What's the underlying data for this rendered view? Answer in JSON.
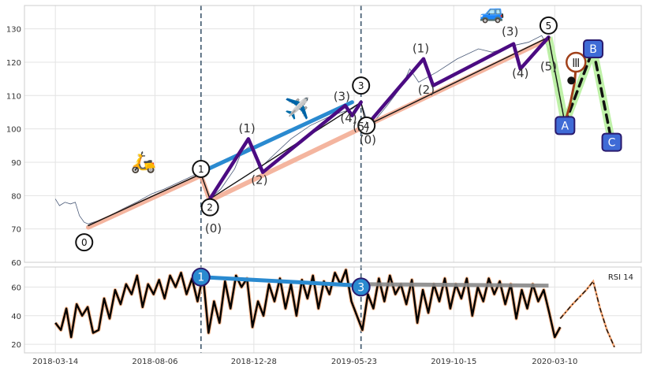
{
  "chart_data": [
    {
      "type": "line",
      "panel": "price",
      "ylim": [
        60,
        137
      ],
      "yticks": [
        60,
        70,
        80,
        90,
        100,
        110,
        120,
        130
      ],
      "grid": true,
      "vlines": [
        "2018-10-12",
        "2019-06-02"
      ],
      "price_series": [
        {
          "x": "2018-03-14",
          "y": 79
        },
        {
          "x": "2018-03-20",
          "y": 77
        },
        {
          "x": "2018-03-28",
          "y": 78
        },
        {
          "x": "2018-04-05",
          "y": 77.5
        },
        {
          "x": "2018-04-12",
          "y": 78
        },
        {
          "x": "2018-04-18",
          "y": 74
        },
        {
          "x": "2018-04-25",
          "y": 72
        },
        {
          "x": "2018-05-01",
          "y": 71.5
        },
        {
          "x": "2018-05-15",
          "y": 72.5
        },
        {
          "x": "2018-06-01",
          "y": 74
        },
        {
          "x": "2018-06-20",
          "y": 76
        },
        {
          "x": "2018-07-10",
          "y": 78
        },
        {
          "x": "2018-08-01",
          "y": 80.5
        },
        {
          "x": "2018-08-20",
          "y": 82
        },
        {
          "x": "2018-09-10",
          "y": 84
        },
        {
          "x": "2018-10-01",
          "y": 86
        },
        {
          "x": "2018-10-12",
          "y": 87
        },
        {
          "x": "2018-10-25",
          "y": 79
        },
        {
          "x": "2018-11-10",
          "y": 82
        },
        {
          "x": "2018-11-30",
          "y": 88
        },
        {
          "x": "2018-12-10",
          "y": 93
        },
        {
          "x": "2018-12-24",
          "y": 95
        },
        {
          "x": "2019-01-05",
          "y": 88
        },
        {
          "x": "2019-01-25",
          "y": 92
        },
        {
          "x": "2019-02-20",
          "y": 97
        },
        {
          "x": "2019-03-20",
          "y": 101
        },
        {
          "x": "2019-04-20",
          "y": 104
        },
        {
          "x": "2019-05-20",
          "y": 106
        },
        {
          "x": "2019-06-02",
          "y": 108
        },
        {
          "x": "2019-06-10",
          "y": 103
        },
        {
          "x": "2019-06-20",
          "y": 102
        },
        {
          "x": "2019-07-10",
          "y": 107
        },
        {
          "x": "2019-08-01",
          "y": 113
        },
        {
          "x": "2019-08-12",
          "y": 118
        },
        {
          "x": "2019-08-25",
          "y": 114
        },
        {
          "x": "2019-09-20",
          "y": 117
        },
        {
          "x": "2019-10-20",
          "y": 121
        },
        {
          "x": "2019-11-20",
          "y": 124
        },
        {
          "x": "2019-12-10",
          "y": 123
        },
        {
          "x": "2020-01-10",
          "y": 125
        },
        {
          "x": "2020-02-01",
          "y": 126
        },
        {
          "x": "2020-02-20",
          "y": 128
        },
        {
          "x": "2020-03-01",
          "y": 124
        },
        {
          "x": "2020-03-10",
          "y": 116
        },
        {
          "x": "2020-03-18",
          "y": 107
        },
        {
          "x": "2020-03-25",
          "y": 105
        }
      ],
      "segments": [
        {
          "kind": "salmon",
          "points": [
            [
              "2018-05-01",
              70.5
            ],
            [
              "2018-10-12",
              86
            ],
            [
              "2018-10-25",
              78.5
            ],
            [
              "2019-06-10",
              101
            ],
            [
              "2020-03-01",
              127
            ]
          ]
        },
        {
          "kind": "black",
          "points": [
            [
              "2018-05-01",
              71
            ],
            [
              "2018-10-12",
              86.5
            ],
            [
              "2018-10-25",
              79
            ],
            [
              "2019-06-02",
              108
            ],
            [
              "2019-06-10",
              101
            ],
            [
              "2020-03-01",
              127.5
            ]
          ]
        },
        {
          "kind": "blue",
          "points": [
            [
              "2018-10-12",
              87
            ],
            [
              "2019-05-20",
              108
            ]
          ]
        },
        {
          "kind": "purple",
          "points": [
            [
              "2018-10-25",
              79
            ],
            [
              "2018-12-20",
              97
            ],
            [
              "2019-01-10",
              87
            ],
            [
              "2019-05-10",
              107
            ],
            [
              "2019-05-20",
              104
            ],
            [
              "2019-06-02",
              108
            ]
          ]
        },
        {
          "kind": "purple",
          "points": [
            [
              "2019-06-10",
              101
            ],
            [
              "2019-09-01",
              121
            ],
            [
              "2019-09-15",
              113
            ],
            [
              "2020-01-10",
              125.5
            ],
            [
              "2020-01-20",
              118
            ],
            [
              "2020-03-01",
              127.5
            ]
          ]
        },
        {
          "kind": "black",
          "points": [
            [
              "2020-03-01",
              127.5
            ],
            [
              "2020-03-25",
              101.5
            ]
          ]
        },
        {
          "kind": "dashed",
          "points": [
            [
              "2020-03-25",
              101.5
            ],
            [
              "2020-05-05",
              124
            ],
            [
              "2020-06-01",
              96
            ]
          ]
        },
        {
          "kind": "brown",
          "points": [
            [
              "2020-03-25",
              102
            ],
            [
              "2020-04-01",
              107
            ],
            [
              "2020-04-08",
              114
            ],
            [
              "2020-04-10",
              119
            ]
          ]
        }
      ],
      "wave_labels": [
        {
          "text": "(0)",
          "x": "2018-10-30",
          "y": 69
        },
        {
          "text": "(1)",
          "x": "2018-12-18",
          "y": 99
        },
        {
          "text": "(2)",
          "x": "2019-01-05",
          "y": 83.5
        },
        {
          "text": "(3)",
          "x": "2019-05-05",
          "y": 108.5
        },
        {
          "text": "(4)",
          "x": "2019-05-15",
          "y": 102
        },
        {
          "text": "(5)",
          "x": "2019-06-02",
          "y": 99.5
        },
        {
          "text": "(0)",
          "x": "2019-06-12",
          "y": 95.5
        },
        {
          "text": "(1)",
          "x": "2019-08-28",
          "y": 123
        },
        {
          "text": "(2)",
          "x": "2019-09-05",
          "y": 110.5
        },
        {
          "text": "(3)",
          "x": "2020-01-05",
          "y": 128
        },
        {
          "text": "(4)",
          "x": "2020-01-20",
          "y": 115.5
        },
        {
          "text": "(5)",
          "x": "2020-03-01",
          "y": 117.5
        }
      ],
      "circles": [
        {
          "text": "0",
          "x": "2018-04-25",
          "y": 66
        },
        {
          "text": "1",
          "x": "2018-10-12",
          "y": 88
        },
        {
          "text": "2",
          "x": "2018-10-25",
          "y": 76.5
        },
        {
          "text": "3",
          "x": "2019-06-02",
          "y": 113
        },
        {
          "text": "4",
          "x": "2019-06-10",
          "y": 101
        },
        {
          "text": "5",
          "x": "2020-03-01",
          "y": 131
        }
      ],
      "roman": {
        "text": "Ⅲ",
        "x": "2020-04-10",
        "y": 120
      },
      "boxes": [
        {
          "text": "A",
          "x": "2020-03-25",
          "y": 101
        },
        {
          "text": "B",
          "x": "2020-05-05",
          "y": 124
        },
        {
          "text": "C",
          "x": "2020-06-01",
          "y": 96
        }
      ],
      "icons": [
        {
          "name": "motor-scooter-icon",
          "glyph": "🛵",
          "x": "2018-07-20",
          "y": 88
        },
        {
          "name": "airplane-icon",
          "glyph": "✈️",
          "x": "2019-03-01",
          "y": 104
        },
        {
          "name": "car-icon",
          "glyph": "🚙",
          "x": "2019-12-10",
          "y": 133
        }
      ]
    },
    {
      "type": "line",
      "panel": "rsi",
      "label": "RSI 14",
      "ylim": [
        14,
        74
      ],
      "yticks": [
        20,
        40,
        60
      ],
      "grid": true,
      "xticks": [
        "2018-03-14",
        "2018-08-06",
        "2018-12-28",
        "2019-05-23",
        "2019-10-15",
        "2020-03-10"
      ],
      "rsi_series": [
        {
          "x": "2018-03-14",
          "y": 35
        },
        {
          "x": "2018-03-22",
          "y": 30
        },
        {
          "x": "2018-03-30",
          "y": 45
        },
        {
          "x": "2018-04-06",
          "y": 25
        },
        {
          "x": "2018-04-14",
          "y": 48
        },
        {
          "x": "2018-04-22",
          "y": 40
        },
        {
          "x": "2018-04-30",
          "y": 46
        },
        {
          "x": "2018-05-08",
          "y": 28
        },
        {
          "x": "2018-05-16",
          "y": 30
        },
        {
          "x": "2018-05-24",
          "y": 52
        },
        {
          "x": "2018-06-01",
          "y": 38
        },
        {
          "x": "2018-06-09",
          "y": 58
        },
        {
          "x": "2018-06-17",
          "y": 48
        },
        {
          "x": "2018-06-25",
          "y": 62
        },
        {
          "x": "2018-07-03",
          "y": 55
        },
        {
          "x": "2018-07-11",
          "y": 68
        },
        {
          "x": "2018-07-19",
          "y": 46
        },
        {
          "x": "2018-07-27",
          "y": 62
        },
        {
          "x": "2018-08-04",
          "y": 55
        },
        {
          "x": "2018-08-12",
          "y": 65
        },
        {
          "x": "2018-08-20",
          "y": 52
        },
        {
          "x": "2018-08-28",
          "y": 68
        },
        {
          "x": "2018-09-05",
          "y": 60
        },
        {
          "x": "2018-09-13",
          "y": 70
        },
        {
          "x": "2018-09-21",
          "y": 55
        },
        {
          "x": "2018-09-29",
          "y": 66
        },
        {
          "x": "2018-10-07",
          "y": 50
        },
        {
          "x": "2018-10-15",
          "y": 68
        },
        {
          "x": "2018-10-23",
          "y": 28
        },
        {
          "x": "2018-10-31",
          "y": 50
        },
        {
          "x": "2018-11-08",
          "y": 35
        },
        {
          "x": "2018-11-16",
          "y": 64
        },
        {
          "x": "2018-11-24",
          "y": 45
        },
        {
          "x": "2018-12-02",
          "y": 68
        },
        {
          "x": "2018-12-10",
          "y": 60
        },
        {
          "x": "2018-12-18",
          "y": 66
        },
        {
          "x": "2018-12-26",
          "y": 32
        },
        {
          "x": "2019-01-03",
          "y": 50
        },
        {
          "x": "2019-01-11",
          "y": 40
        },
        {
          "x": "2019-01-19",
          "y": 62
        },
        {
          "x": "2019-01-27",
          "y": 50
        },
        {
          "x": "2019-02-04",
          "y": 66
        },
        {
          "x": "2019-02-12",
          "y": 45
        },
        {
          "x": "2019-02-20",
          "y": 62
        },
        {
          "x": "2019-02-28",
          "y": 40
        },
        {
          "x": "2019-03-08",
          "y": 65
        },
        {
          "x": "2019-03-16",
          "y": 52
        },
        {
          "x": "2019-03-24",
          "y": 68
        },
        {
          "x": "2019-04-01",
          "y": 45
        },
        {
          "x": "2019-04-09",
          "y": 64
        },
        {
          "x": "2019-04-17",
          "y": 55
        },
        {
          "x": "2019-04-25",
          "y": 70
        },
        {
          "x": "2019-05-03",
          "y": 62
        },
        {
          "x": "2019-05-11",
          "y": 72
        },
        {
          "x": "2019-05-19",
          "y": 50
        },
        {
          "x": "2019-05-27",
          "y": 40
        },
        {
          "x": "2019-06-04",
          "y": 30
        },
        {
          "x": "2019-06-12",
          "y": 55
        },
        {
          "x": "2019-06-20",
          "y": 45
        },
        {
          "x": "2019-06-28",
          "y": 66
        },
        {
          "x": "2019-07-06",
          "y": 50
        },
        {
          "x": "2019-07-14",
          "y": 68
        },
        {
          "x": "2019-07-22",
          "y": 55
        },
        {
          "x": "2019-07-30",
          "y": 62
        },
        {
          "x": "2019-08-07",
          "y": 48
        },
        {
          "x": "2019-08-15",
          "y": 65
        },
        {
          "x": "2019-08-23",
          "y": 35
        },
        {
          "x": "2019-08-31",
          "y": 58
        },
        {
          "x": "2019-09-08",
          "y": 42
        },
        {
          "x": "2019-09-16",
          "y": 62
        },
        {
          "x": "2019-09-24",
          "y": 50
        },
        {
          "x": "2019-10-02",
          "y": 66
        },
        {
          "x": "2019-10-10",
          "y": 45
        },
        {
          "x": "2019-10-18",
          "y": 62
        },
        {
          "x": "2019-10-26",
          "y": 52
        },
        {
          "x": "2019-11-03",
          "y": 66
        },
        {
          "x": "2019-11-11",
          "y": 40
        },
        {
          "x": "2019-11-19",
          "y": 60
        },
        {
          "x": "2019-11-27",
          "y": 50
        },
        {
          "x": "2019-12-05",
          "y": 66
        },
        {
          "x": "2019-12-13",
          "y": 55
        },
        {
          "x": "2019-12-21",
          "y": 64
        },
        {
          "x": "2019-12-29",
          "y": 48
        },
        {
          "x": "2020-01-06",
          "y": 62
        },
        {
          "x": "2020-01-14",
          "y": 38
        },
        {
          "x": "2020-01-22",
          "y": 58
        },
        {
          "x": "2020-01-30",
          "y": 45
        },
        {
          "x": "2020-02-07",
          "y": 62
        },
        {
          "x": "2020-02-15",
          "y": 50
        },
        {
          "x": "2020-02-23",
          "y": 58
        },
        {
          "x": "2020-03-02",
          "y": 42
        },
        {
          "x": "2020-03-10",
          "y": 25
        },
        {
          "x": "2020-03-18",
          "y": 32
        }
      ],
      "rsi_projection": [
        {
          "x": "2020-03-18",
          "y": 38
        },
        {
          "x": "2020-04-05",
          "y": 48
        },
        {
          "x": "2020-04-25",
          "y": 58
        },
        {
          "x": "2020-05-05",
          "y": 64
        },
        {
          "x": "2020-05-15",
          "y": 45
        },
        {
          "x": "2020-05-25",
          "y": 30
        },
        {
          "x": "2020-06-05",
          "y": 18
        }
      ],
      "trendlines": [
        {
          "kind": "blue",
          "points": [
            [
              "2018-10-12",
              67
            ],
            [
              "2019-06-02",
              61
            ]
          ]
        },
        {
          "kind": "gray",
          "points": [
            [
              "2019-06-02",
              62
            ],
            [
              "2020-03-01",
              61
            ]
          ]
        }
      ],
      "circles": [
        {
          "text": "1",
          "x": "2018-10-12",
          "y": 67
        },
        {
          "text": "3",
          "x": "2019-06-02",
          "y": 60
        }
      ]
    }
  ]
}
